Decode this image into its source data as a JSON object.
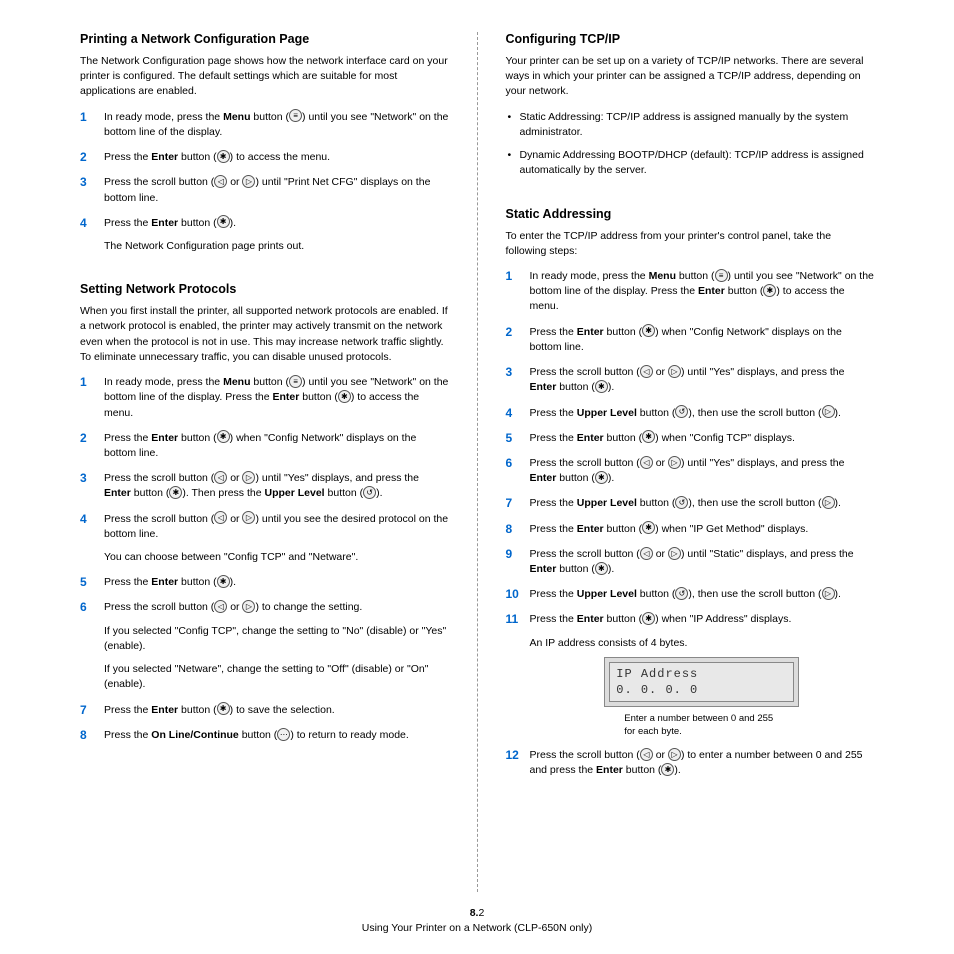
{
  "left": {
    "section1": {
      "heading": "Printing a Network Configuration Page",
      "intro": "The Network Configuration page shows how the network interface card on your printer is configured. The default settings which are suitable for most applications are enabled.",
      "steps": [
        {
          "pre": "In ready mode, press the ",
          "b1": "Menu",
          "mid1": " button (",
          "icon1": "≡",
          "mid2": ") until you see \"Network\" on the bottom line of the display."
        },
        {
          "pre": "Press the ",
          "b1": "Enter",
          "mid1": " button (",
          "icon1": "✱",
          "mid2": ") to access the menu."
        },
        {
          "pre": "Press the scroll button (",
          "icon1": "◁",
          "mid1": " or ",
          "icon2": "▷",
          "mid2": ") until \"Print Net CFG\" displays on the bottom line."
        },
        {
          "pre": "Press the ",
          "b1": "Enter",
          "mid1": " button (",
          "icon1": "✱",
          "mid2": ").",
          "sub": "The Network Configuration page prints out."
        }
      ]
    },
    "section2": {
      "heading": "Setting Network Protocols",
      "intro": "When you first install the printer, all supported network protocols are enabled. If a network protocol is enabled, the printer may actively transmit on the network even when the protocol is not in use. This may increase network traffic slightly. To eliminate unnecessary traffic, you can disable unused protocols.",
      "steps": [
        {
          "pre": "In ready mode, press the ",
          "b1": "Menu",
          "mid1": " button (",
          "icon1": "≡",
          "mid2": ") until you see \"Network\" on the bottom line of the display. Press the ",
          "b2": "Enter",
          "mid3": " button (",
          "icon2": "✱",
          "mid4": ") to access the menu."
        },
        {
          "pre": "Press the ",
          "b1": "Enter",
          "mid1": " button (",
          "icon1": "✱",
          "mid2": ") when \"Config Network\" displays on the bottom line."
        },
        {
          "pre": "Press the scroll button (",
          "icon1": "◁",
          "mid1": " or ",
          "icon2": "▷",
          "mid2": ") until \"Yes\" displays, and press the ",
          "b1": "Enter",
          "mid3": " button (",
          "icon3": "✱",
          "mid4": "). Then press the ",
          "b2": "Upper Level",
          "mid5": " button (",
          "icon4": "↺",
          "mid6": ")."
        },
        {
          "pre": "Press the scroll button (",
          "icon1": "◁",
          "mid1": " or ",
          "icon2": "▷",
          "mid2": ") until you see the desired protocol on the bottom line.",
          "sub": "You can choose between \"Config TCP\" and \"Netware\"."
        },
        {
          "pre": "Press the ",
          "b1": "Enter",
          "mid1": " button (",
          "icon1": "✱",
          "mid2": ")."
        },
        {
          "pre": "Press the scroll button (",
          "icon1": "◁",
          "mid1": " or ",
          "icon2": "▷",
          "mid2": ") to change the setting.",
          "sub": "If you selected \"Config TCP\", change the setting to \"No\" (disable) or \"Yes\" (enable).",
          "sub2": "If you selected \"Netware\", change the setting to \"Off\" (disable) or \"On\" (enable)."
        },
        {
          "pre": "Press the ",
          "b1": "Enter",
          "mid1": " button (",
          "icon1": "✱",
          "mid2": ") to save the selection."
        },
        {
          "pre": "Press the ",
          "b1": "On Line/Continue",
          "mid1": " button (",
          "icon1": "⋯",
          "mid2": ") to return to ready mode."
        }
      ]
    }
  },
  "right": {
    "section1": {
      "heading": "Configuring TCP/IP",
      "intro": "Your printer can be set up on a variety of TCP/IP networks. There are several ways in which your printer can be assigned a TCP/IP address, depending on your network.",
      "bullets": [
        "Static Addressing: TCP/IP address is assigned manually by the system administrator.",
        "Dynamic Addressing BOOTP/DHCP (default): TCP/IP address is assigned automatically by the server."
      ]
    },
    "section2": {
      "heading": "Static Addressing",
      "intro": "To enter the TCP/IP address from your printer's control panel, take the following steps:",
      "steps": [
        {
          "pre": "In ready mode, press the ",
          "b1": "Menu",
          "mid1": " button (",
          "icon1": "≡",
          "mid2": ") until you see \"Network\" on the bottom line of the display. Press the ",
          "b2": "Enter",
          "mid3": " button (",
          "icon2": "✱",
          "mid4": ") to access the menu."
        },
        {
          "pre": "Press the ",
          "b1": "Enter",
          "mid1": " button (",
          "icon1": "✱",
          "mid2": ") when \"Config Network\" displays on the bottom line."
        },
        {
          "pre": "Press the scroll button (",
          "icon1": "◁",
          "mid1": " or ",
          "icon2": "▷",
          "mid2": ") until \"Yes\" displays, and press the ",
          "b1": "Enter",
          "mid3": " button (",
          "icon3": "✱",
          "mid4": ")."
        },
        {
          "pre": "Press the ",
          "b1": "Upper Level",
          "mid1": " button (",
          "icon1": "↺",
          "mid2": "), then use the scroll button (",
          "icon2": "▷",
          "mid3": ")."
        },
        {
          "pre": "Press the ",
          "b1": "Enter",
          "mid1": " button (",
          "icon1": "✱",
          "mid2": ") when \"Config TCP\" displays."
        },
        {
          "pre": "Press the scroll button (",
          "icon1": "◁",
          "mid1": " or ",
          "icon2": "▷",
          "mid2": ") until \"Yes\" displays, and press the ",
          "b1": "Enter",
          "mid3": " button (",
          "icon3": "✱",
          "mid4": ")."
        },
        {
          "pre": "Press the ",
          "b1": "Upper Level",
          "mid1": " button (",
          "icon1": "↺",
          "mid2": "), then use the scroll button (",
          "icon2": "▷",
          "mid3": ")."
        },
        {
          "pre": "Press the ",
          "b1": "Enter",
          "mid1": " button (",
          "icon1": "✱",
          "mid2": ") when \"IP Get Method\" displays."
        },
        {
          "pre": "Press the scroll button (",
          "icon1": "◁",
          "mid1": " or ",
          "icon2": "▷",
          "mid2": ") until \"Static\" displays, and press the ",
          "b1": "Enter",
          "mid3": " button (",
          "icon3": "✱",
          "mid4": ")."
        },
        {
          "pre": "Press the ",
          "b1": "Upper Level",
          "mid1": " button (",
          "icon1": "↺",
          "mid2": "), then use the scroll button (",
          "icon2": "▷",
          "mid3": ")."
        },
        {
          "pre": "Press the ",
          "b1": "Enter",
          "mid1": " button (",
          "icon1": "✱",
          "mid2": ") when \"IP Address\" displays.",
          "sub": "An IP address consists of 4 bytes.",
          "lcd": true
        },
        {
          "pre": "Press the scroll button (",
          "icon1": "◁",
          "mid1": " or ",
          "icon2": "▷",
          "mid2": ") to enter a number between 0 and 255 and press the ",
          "b1": "Enter",
          "mid3": " button (",
          "icon3": "✱",
          "mid4": ")."
        }
      ],
      "lcd": {
        "row1": "IP Address",
        "row2": "  0.  0.  0.  0",
        "caption": "Enter a number between 0 and 255 for each byte."
      }
    }
  },
  "footer": {
    "pagePrefix": "8.",
    "pageNum": "2",
    "title": "Using Your Printer on a Network (CLP-650N only)"
  }
}
